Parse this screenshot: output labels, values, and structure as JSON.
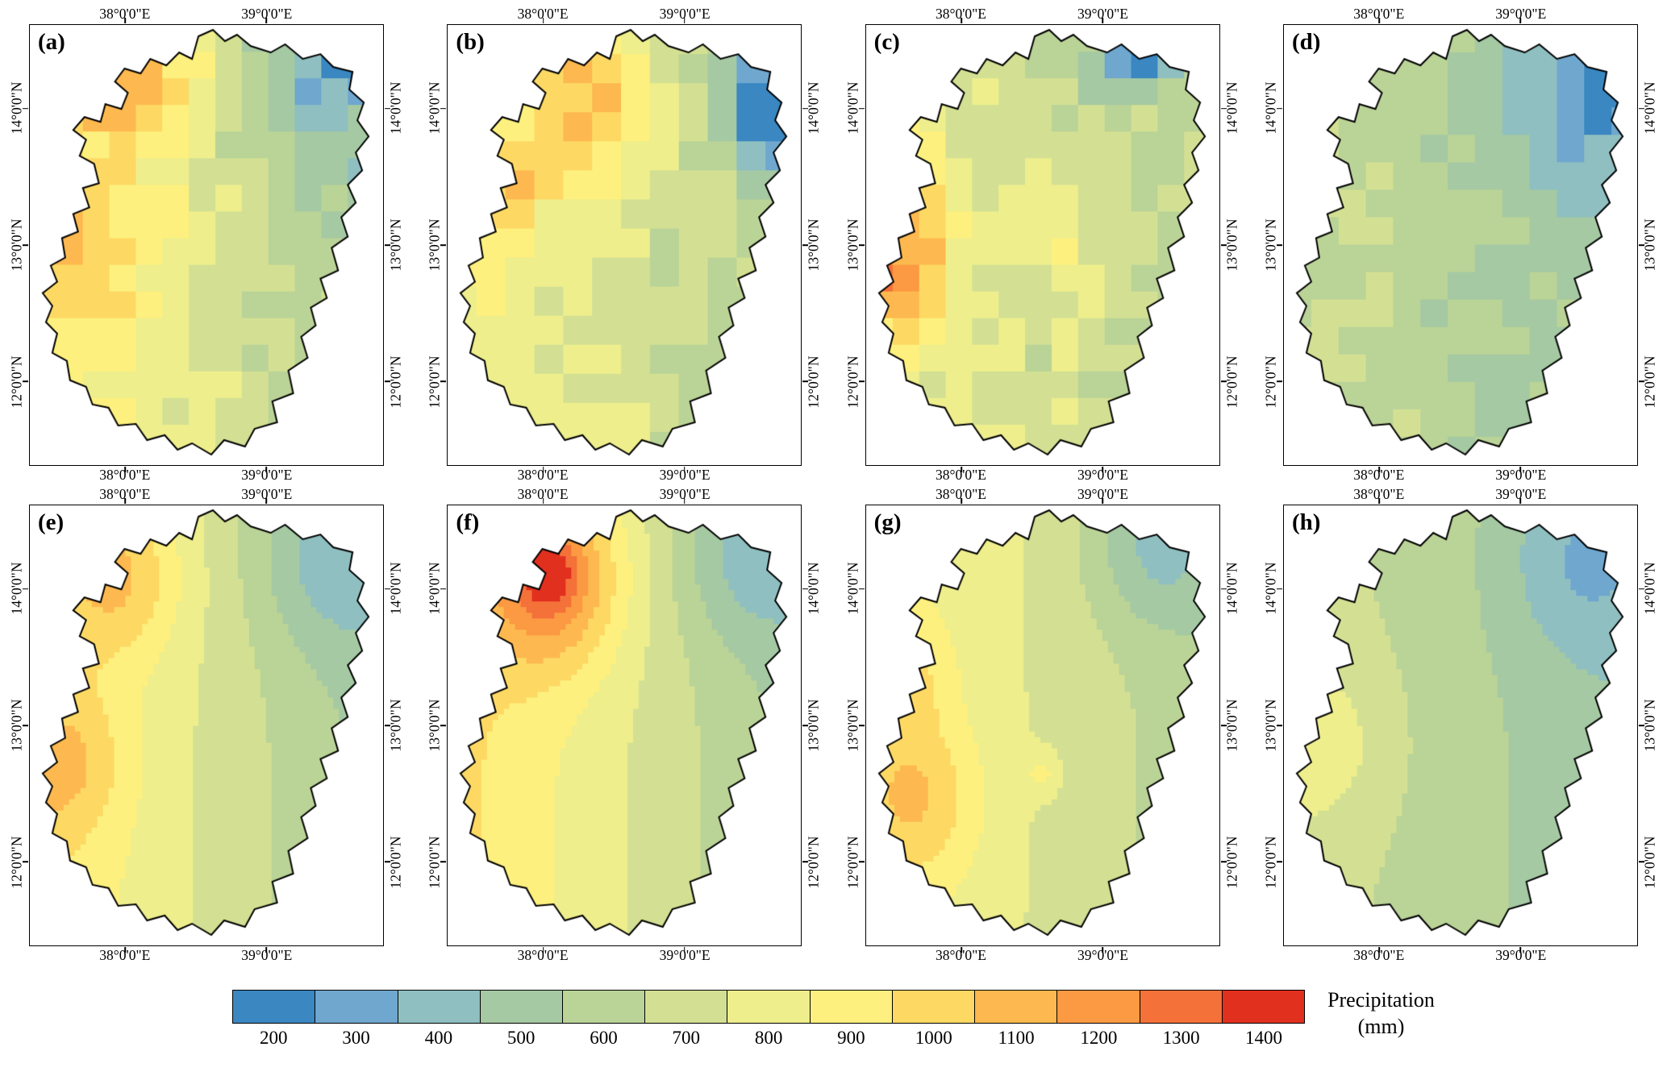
{
  "figure": {
    "axis": {
      "top_ticks": [
        "38°0'0\"E",
        "39°0'0\"E"
      ],
      "bottom_ticks": [
        "38°0'0\"E",
        "39°0'0\"E"
      ],
      "left_ticks": [
        "14°0'0\"N",
        "13°0'0\"N",
        "12°0'0\"N"
      ],
      "right_ticks": [
        "14°0'0\"N",
        "13°0'0\"N",
        "12°0'0\"N"
      ]
    },
    "panels": [
      {
        "id": "a",
        "label": "(a)",
        "style": "gridded",
        "field": {
          "west": 900,
          "east": 560,
          "cell": 33,
          "noise": 70,
          "blobs": [
            [
              0.28,
              0.14,
              0.14,
              280
            ],
            [
              0.1,
              0.55,
              0.15,
              160
            ],
            [
              0.88,
              0.1,
              0.18,
              -240
            ],
            [
              0.93,
              0.04,
              0.05,
              -600
            ]
          ]
        }
      },
      {
        "id": "b",
        "label": "(b)",
        "style": "gridded",
        "field": {
          "west": 830,
          "east": 600,
          "cell": 36,
          "noise": 60,
          "blobs": [
            [
              0.38,
              0.16,
              0.16,
              330
            ],
            [
              0.12,
              0.38,
              0.08,
              250
            ],
            [
              0.85,
              0.12,
              0.12,
              -180
            ],
            [
              0.95,
              0.2,
              0.07,
              -650
            ]
          ]
        }
      },
      {
        "id": "c",
        "label": "(c)",
        "style": "gridded",
        "field": {
          "west": 800,
          "east": 620,
          "cell": 33,
          "noise": 70,
          "blobs": [
            [
              0.06,
              0.42,
              0.13,
              330
            ],
            [
              0.05,
              0.62,
              0.1,
              300
            ],
            [
              0.6,
              0.08,
              0.1,
              -120
            ],
            [
              0.8,
              0.06,
              0.06,
              -650
            ],
            [
              0.55,
              0.55,
              0.06,
              180
            ]
          ]
        }
      },
      {
        "id": "d",
        "label": "(d)",
        "style": "gridded",
        "field": {
          "west": 660,
          "east": 500,
          "cell": 34,
          "noise": 45,
          "blobs": [
            [
              0.85,
              0.15,
              0.2,
              -180
            ],
            [
              0.96,
              0.13,
              0.05,
              -520
            ]
          ]
        }
      },
      {
        "id": "e",
        "label": "(e)",
        "style": "smooth",
        "field": {
          "west": 950,
          "east": 520,
          "cell": 7,
          "noise": 0,
          "blobs": [
            [
              0.24,
              0.16,
              0.13,
              230
            ],
            [
              0.08,
              0.6,
              0.12,
              180
            ],
            [
              0.88,
              0.1,
              0.16,
              -200
            ]
          ]
        }
      },
      {
        "id": "f",
        "label": "(f)",
        "style": "smooth",
        "field": {
          "west": 980,
          "east": 530,
          "cell": 7,
          "noise": 0,
          "blobs": [
            [
              0.28,
              0.16,
              0.15,
              430
            ],
            [
              0.27,
              0.15,
              0.055,
              220
            ],
            [
              0.88,
              0.1,
              0.15,
              -200
            ]
          ]
        }
      },
      {
        "id": "g",
        "label": "(g)",
        "style": "smooth",
        "field": {
          "west": 880,
          "east": 590,
          "cell": 7,
          "noise": 0,
          "blobs": [
            [
              0.12,
              0.68,
              0.13,
              220
            ],
            [
              0.07,
              0.4,
              0.1,
              150
            ],
            [
              0.85,
              0.08,
              0.14,
              -220
            ],
            [
              0.5,
              0.62,
              0.035,
              150
            ]
          ]
        }
      },
      {
        "id": "h",
        "label": "(h)",
        "style": "smooth",
        "field": {
          "west": 700,
          "east": 470,
          "cell": 7,
          "noise": 0,
          "blobs": [
            [
              0.87,
              0.12,
              0.16,
              -170
            ],
            [
              0.1,
              0.55,
              0.15,
              120
            ]
          ]
        }
      }
    ],
    "colorbar": {
      "title_line1": "Precipitation",
      "title_line2": "(mm)",
      "tick_labels": [
        "200",
        "300",
        "400",
        "500",
        "600",
        "700",
        "800",
        "900",
        "1000",
        "1100",
        "1200",
        "1300",
        "1400"
      ],
      "colors": [
        "#3a87c1",
        "#6fa7cf",
        "#8fbfc0",
        "#a5c9a3",
        "#bad397",
        "#d3e093",
        "#eeee8d",
        "#fdf07e",
        "#fdd964",
        "#fdb94f",
        "#fb9a42",
        "#f4713a",
        "#e2301f"
      ],
      "value_min": 200,
      "value_step": 100
    }
  }
}
